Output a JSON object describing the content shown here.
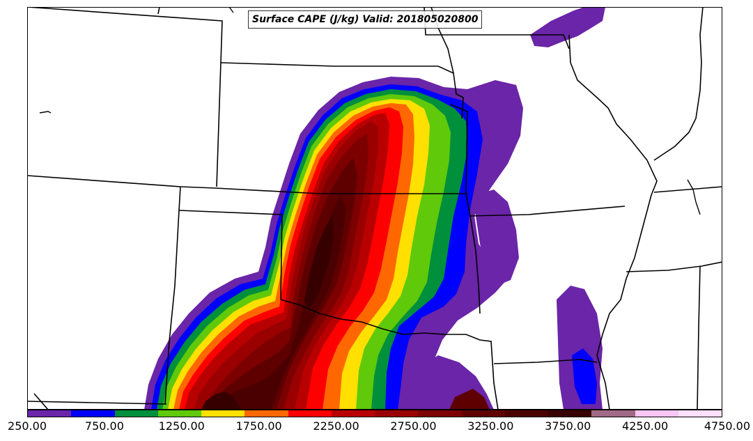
{
  "title": "Surface CAPE (J/kg) Valid: 201805020800",
  "colorbar": {
    "colors": [
      "#6a25a8",
      "#0000ff",
      "#008f3b",
      "#5fc90a",
      "#ffe000",
      "#ff6800",
      "#ff0000",
      "#b90000",
      "#9a0000",
      "#7d0000",
      "#5e0000",
      "#4a0000",
      "#370000",
      "#a06a86",
      "#f7c6f5",
      "#ffe0ff"
    ],
    "tick_labels": [
      "250.00",
      "750.00",
      "1250.00",
      "1750.00",
      "2250.00",
      "2750.00",
      "3250.00",
      "3750.00",
      "4250.00",
      "4750.00"
    ],
    "min": 250,
    "max": 4750,
    "interval": 250
  },
  "map": {
    "field": "Surface CAPE",
    "units": "J/kg",
    "valid_time": "201805020800",
    "region": "Southern Great Plains, USA",
    "background_color": "#ffffff",
    "boundary_color": "#000000"
  }
}
